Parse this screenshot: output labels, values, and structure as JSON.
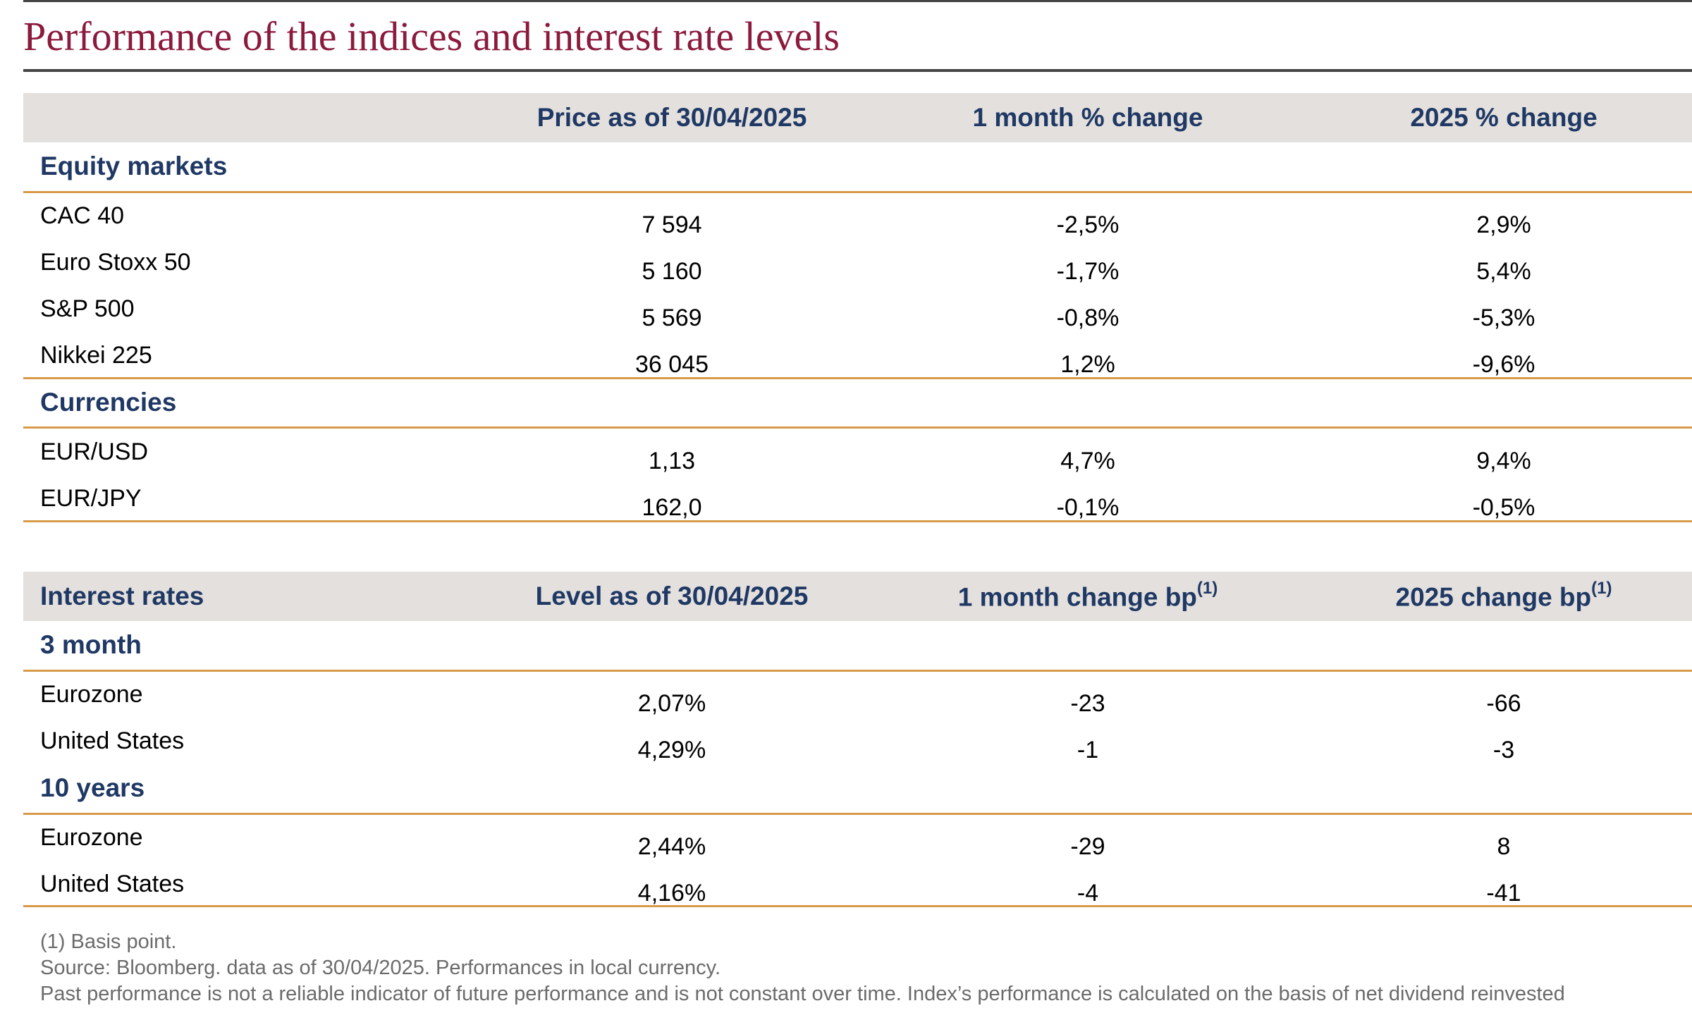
{
  "title": "Performance of the indices and interest rate levels",
  "markets_table": {
    "headers": [
      "",
      "Price as of 30/04/2025",
      "1 month % change",
      "2025 % change"
    ],
    "sections": [
      {
        "label": "Equity markets",
        "rows": [
          {
            "name": "CAC 40",
            "value": "7 594",
            "change_1m": "-2,5%",
            "change_ytd": "2,9%"
          },
          {
            "name": "Euro Stoxx 50",
            "value": "5 160",
            "change_1m": "-1,7%",
            "change_ytd": "5,4%"
          },
          {
            "name": "S&P 500",
            "value": "5 569",
            "change_1m": "-0,8%",
            "change_ytd": "-5,3%"
          },
          {
            "name": "Nikkei 225",
            "value": "36 045",
            "change_1m": "1,2%",
            "change_ytd": "-9,6%"
          }
        ]
      },
      {
        "label": "Currencies",
        "rows": [
          {
            "name": "EUR/USD",
            "value": "1,13",
            "change_1m": "4,7%",
            "change_ytd": "9,4%"
          },
          {
            "name": "EUR/JPY",
            "value": "162,0",
            "change_1m": "-0,1%",
            "change_ytd": "-0,5%"
          }
        ]
      }
    ]
  },
  "rates_table": {
    "headers": [
      "Interest rates",
      "Level as of 30/04/2025",
      "1 month change bp",
      "2025 change bp"
    ],
    "footnote_mark": "(1)",
    "sections": [
      {
        "label": "3 month",
        "rows": [
          {
            "name": "Eurozone",
            "value": "2,07%",
            "change_1m": "-23",
            "change_ytd": "-66"
          },
          {
            "name": "United States",
            "value": "4,29%",
            "change_1m": "-1",
            "change_ytd": "-3"
          }
        ]
      },
      {
        "label": "10 years",
        "rows": [
          {
            "name": "Eurozone",
            "value": "2,44%",
            "change_1m": "-29",
            "change_ytd": "8"
          },
          {
            "name": "United States",
            "value": "4,16%",
            "change_1m": "-4",
            "change_ytd": "-41"
          }
        ]
      }
    ]
  },
  "footnotes": [
    "(1) Basis point.",
    "Source: Bloomberg. data as of 30/04/2025. Performances in local currency.",
    "Past performance is not a reliable indicator of future performance and is not constant over time. Index’s performance is calculated on the basis of net dividend reinvested"
  ],
  "colors": {
    "title": "#8b1a3c",
    "header_text": "#1f3864",
    "header_band": "#e3e0dd",
    "section_rule": "#d69a4a"
  }
}
